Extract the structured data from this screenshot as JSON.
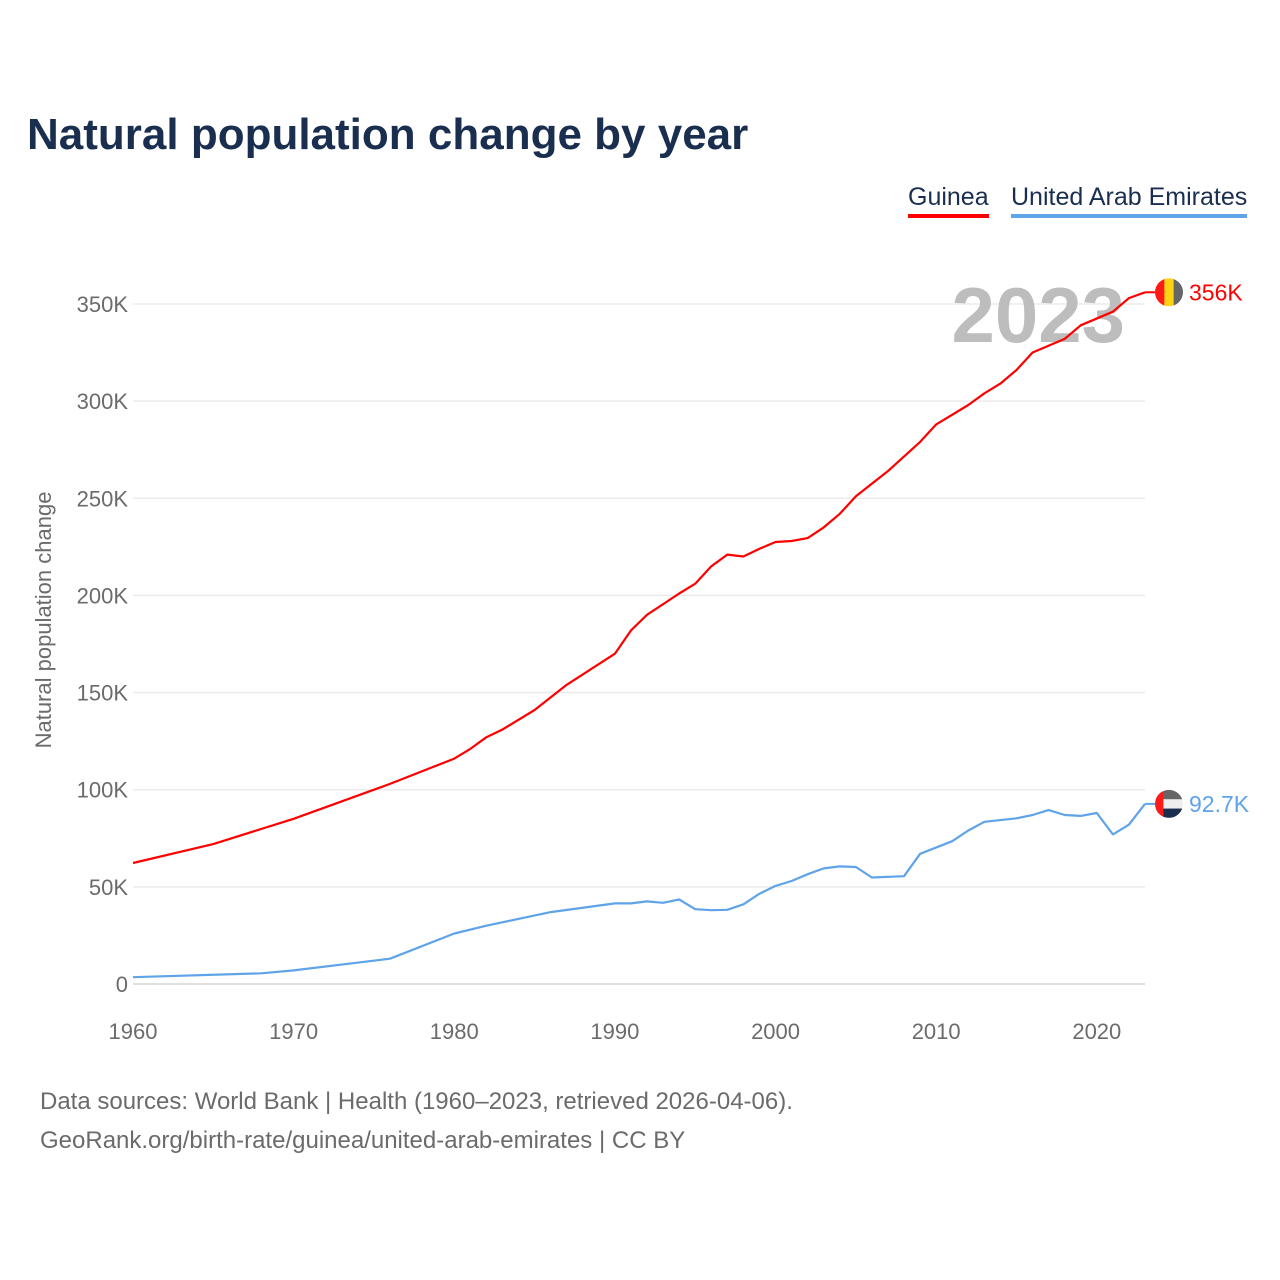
{
  "chart_data": {
    "type": "line",
    "title": "Natural population change by year",
    "ylabel": "Natural population change",
    "xlabel": "",
    "xlim": [
      1960,
      2023
    ],
    "ylim": [
      0,
      365000
    ],
    "x_ticks": [
      1960,
      1970,
      1980,
      1990,
      2000,
      2010,
      2020
    ],
    "y_ticks": [
      0,
      50000,
      100000,
      150000,
      200000,
      250000,
      300000,
      350000
    ],
    "y_tick_labels": [
      "0",
      "50K",
      "100K",
      "150K",
      "200K",
      "250K",
      "300K",
      "350K"
    ],
    "grid": true,
    "legend_position": "top-right",
    "current_year_label": "2023",
    "series": [
      {
        "name": "Guinea",
        "color": "#ff0000",
        "end_label": "356K",
        "flag_colors": [
          "#ff1a1a",
          "#fcd116",
          "#666666"
        ],
        "x": [
          1960,
          1965,
          1970,
          1975,
          1976,
          1980,
          1981,
          1982,
          1983,
          1985,
          1987,
          1990,
          1991,
          1992,
          1994,
          1995,
          1996,
          1997,
          1998,
          1999,
          2000,
          2001,
          2002,
          2003,
          2004,
          2005,
          2007,
          2009,
          2010,
          2012,
          2013,
          2014,
          2015,
          2016,
          2018,
          2019,
          2021,
          2022,
          2023
        ],
        "y": [
          62300,
          72000,
          85000,
          100000,
          103000,
          116000,
          121000,
          127000,
          131000,
          141000,
          154000,
          170000,
          182000,
          190000,
          201000,
          206000,
          215000,
          221000,
          220000,
          224000,
          227500,
          228000,
          229500,
          235000,
          242000,
          251000,
          264000,
          279000,
          288000,
          298000,
          304000,
          309000,
          316000,
          325000,
          332000,
          339000,
          346000,
          353000,
          356000
        ]
      },
      {
        "name": "United Arab Emirates",
        "color": "#5fa3e8",
        "end_label": "92.7K",
        "flag_colors": [
          "#ff1a1a",
          "#666666",
          "#eeeeee",
          "#1a2e4f"
        ],
        "x": [
          1960,
          1968,
          1970,
          1976,
          1980,
          1982,
          1986,
          1990,
          1991,
          1992,
          1993,
          1994,
          1995,
          1996,
          1997,
          1998,
          1999,
          2000,
          2001,
          2002,
          2003,
          2004,
          2005,
          2006,
          2008,
          2009,
          2011,
          2012,
          2013,
          2015,
          2016,
          2017,
          2018,
          2019,
          2020,
          2021,
          2022,
          2023
        ],
        "y": [
          3500,
          5500,
          7000,
          13000,
          26000,
          30000,
          37000,
          41500,
          41500,
          42500,
          41800,
          43500,
          38500,
          38000,
          38200,
          41000,
          46500,
          50500,
          53000,
          56500,
          59500,
          60500,
          60200,
          54800,
          55500,
          67000,
          73500,
          79000,
          83500,
          85300,
          87000,
          89500,
          87000,
          86500,
          88000,
          77000,
          82000,
          92700
        ]
      }
    ]
  },
  "footer": {
    "line1": "Data sources: World Bank | Health (1960–2023, retrieved 2026-04-06).",
    "line2": "GeoRank.org/birth-rate/guinea/united-arab-emirates | CC BY"
  }
}
